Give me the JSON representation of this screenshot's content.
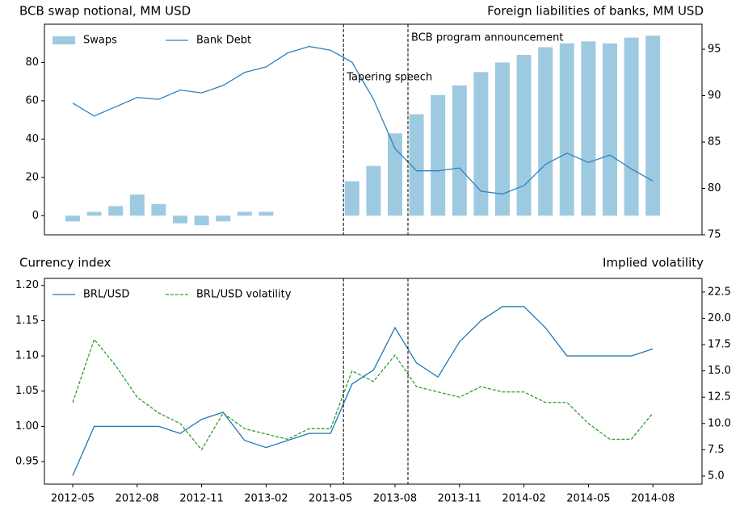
{
  "chart_data": [
    {
      "type": "bar",
      "ylabel": "BCB swap notional, MM USD",
      "y2label": "Foreign liabilities of banks, MM USD",
      "categories": [
        "2012-05",
        "2012-06",
        "2012-07",
        "2012-08",
        "2012-09",
        "2012-10",
        "2012-11",
        "2012-12",
        "2013-01",
        "2013-02",
        "2013-03",
        "2013-04",
        "2013-05",
        "2013-06",
        "2013-07",
        "2013-08",
        "2013-09",
        "2013-10",
        "2013-11",
        "2013-12",
        "2014-01",
        "2014-02",
        "2014-03",
        "2014-04",
        "2014-05",
        "2014-06",
        "2014-07",
        "2014-08"
      ],
      "series": [
        {
          "name": "Swaps",
          "type": "bar",
          "color": "#9ecae1",
          "values": [
            -3,
            2,
            5,
            11,
            6,
            -4,
            -5,
            -3,
            2,
            2,
            null,
            null,
            null,
            18,
            26,
            43,
            53,
            63,
            68,
            75,
            80,
            84,
            88,
            90,
            91,
            90,
            93,
            94
          ]
        },
        {
          "name": "Bank Debt",
          "type": "line",
          "axis": "y2",
          "color": "#3182bd",
          "values": [
            89.2,
            87.8,
            88.8,
            89.8,
            89.6,
            90.6,
            90.3,
            91.1,
            92.5,
            93.1,
            94.6,
            95.3,
            94.9,
            93.6,
            89.6,
            84.3,
            81.9,
            81.9,
            82.2,
            79.7,
            79.4,
            80.3,
            82.6,
            83.8,
            82.8,
            83.6,
            82.1,
            80.8
          ]
        }
      ],
      "ylim": [
        -10,
        100
      ],
      "yticks": [
        0,
        20,
        40,
        60,
        80
      ],
      "y2lim": [
        75,
        97.7
      ],
      "y2ticks": [
        75,
        80,
        85,
        90,
        95
      ],
      "events": [
        {
          "x": "2013-05",
          "label": "Tapering speech"
        },
        {
          "x": "2013-08",
          "label": "BCB program announcement"
        }
      ]
    },
    {
      "type": "line",
      "ylabel": "Currency index",
      "y2label": "Implied volatility",
      "categories": [
        "2012-05",
        "2012-06",
        "2012-07",
        "2012-08",
        "2012-09",
        "2012-10",
        "2012-11",
        "2012-12",
        "2013-01",
        "2013-02",
        "2013-03",
        "2013-04",
        "2013-05",
        "2013-06",
        "2013-07",
        "2013-08",
        "2013-09",
        "2013-10",
        "2013-11",
        "2013-12",
        "2014-01",
        "2014-02",
        "2014-03",
        "2014-04",
        "2014-05",
        "2014-06",
        "2014-07",
        "2014-08"
      ],
      "xticks": [
        "2012-05",
        "2012-08",
        "2012-11",
        "2013-02",
        "2013-05",
        "2013-08",
        "2013-11",
        "2014-02",
        "2014-05",
        "2014-08"
      ],
      "series": [
        {
          "name": "BRL/USD",
          "type": "line",
          "color": "#1f77b4",
          "values": [
            0.93,
            1.0,
            1.0,
            1.0,
            1.0,
            0.99,
            1.01,
            1.02,
            0.98,
            0.97,
            0.98,
            0.99,
            0.99,
            1.06,
            1.08,
            1.14,
            1.09,
            1.07,
            1.12,
            1.15,
            1.17,
            1.17,
            1.14,
            1.1,
            1.1,
            1.1,
            1.1,
            1.11
          ]
        },
        {
          "name": "BRL/USD volatility",
          "type": "line",
          "axis": "y2",
          "dashed": true,
          "color": "#2ca02c",
          "values": [
            12,
            18,
            15.5,
            12.5,
            11,
            10,
            7.5,
            11,
            9.5,
            9,
            8.5,
            9.5,
            9.5,
            15,
            14,
            16.5,
            13.5,
            13,
            12.5,
            13.5,
            13,
            13,
            12,
            12,
            10,
            8.5,
            8.5,
            11
          ]
        }
      ],
      "ylim": [
        0.918,
        1.21
      ],
      "yticks": [
        {
          "value": 0.95,
          "label": "0.95"
        },
        {
          "value": 1.0,
          "label": "1.00"
        },
        {
          "value": 1.05,
          "label": "1.05"
        },
        {
          "value": 1.1,
          "label": "1.10"
        },
        {
          "value": 1.15,
          "label": "1.15"
        },
        {
          "value": 1.2,
          "label": "1.20"
        }
      ],
      "y2lim": [
        4.23,
        23.8
      ],
      "y2ticks": [
        {
          "value": 5,
          "label": "5.0"
        },
        {
          "value": 7.5,
          "label": "7.5"
        },
        {
          "value": 10,
          "label": "10.0"
        },
        {
          "value": 12.5,
          "label": "12.5"
        },
        {
          "value": 15,
          "label": "15.0"
        },
        {
          "value": 17.5,
          "label": "17.5"
        },
        {
          "value": 20,
          "label": "20.0"
        },
        {
          "value": 22.5,
          "label": "22.5"
        }
      ],
      "vlines": [
        "2013-05",
        "2013-08"
      ]
    }
  ]
}
